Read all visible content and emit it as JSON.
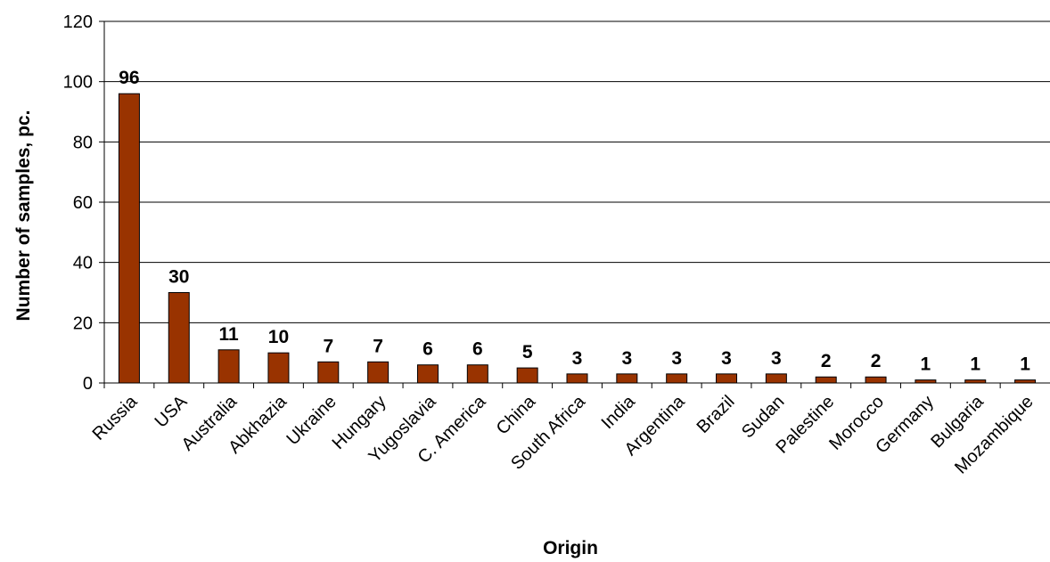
{
  "chart_data": {
    "type": "bar",
    "title": "",
    "xlabel": "Origin",
    "ylabel": "Number of samples, pc.",
    "ylim": [
      0,
      120
    ],
    "y_ticks": [
      "0",
      "20",
      "40",
      "60",
      "80",
      "100",
      "120"
    ],
    "grid": true,
    "legend": "none",
    "bar_color": "#993300",
    "categories": [
      "Russia",
      "USA",
      "Australia",
      "Abkhazia",
      "Ukraine",
      "Hungary",
      "Yugoslavia",
      "C. America",
      "China",
      "South Africa",
      "India",
      "Argentina",
      "Brazil",
      "Sudan",
      "Palestine",
      "Morocco",
      "Germany",
      "Bulgaria",
      "Mozambique"
    ],
    "values": [
      96,
      30,
      11,
      10,
      7,
      7,
      6,
      6,
      5,
      3,
      3,
      3,
      3,
      3,
      2,
      2,
      1,
      1,
      1
    ],
    "data_labels": [
      "96",
      "30",
      "11",
      "10",
      "7",
      "7",
      "6",
      "6",
      "5",
      "3",
      "3",
      "3",
      "3",
      "3",
      "2",
      "2",
      "1",
      "1",
      "1"
    ]
  }
}
